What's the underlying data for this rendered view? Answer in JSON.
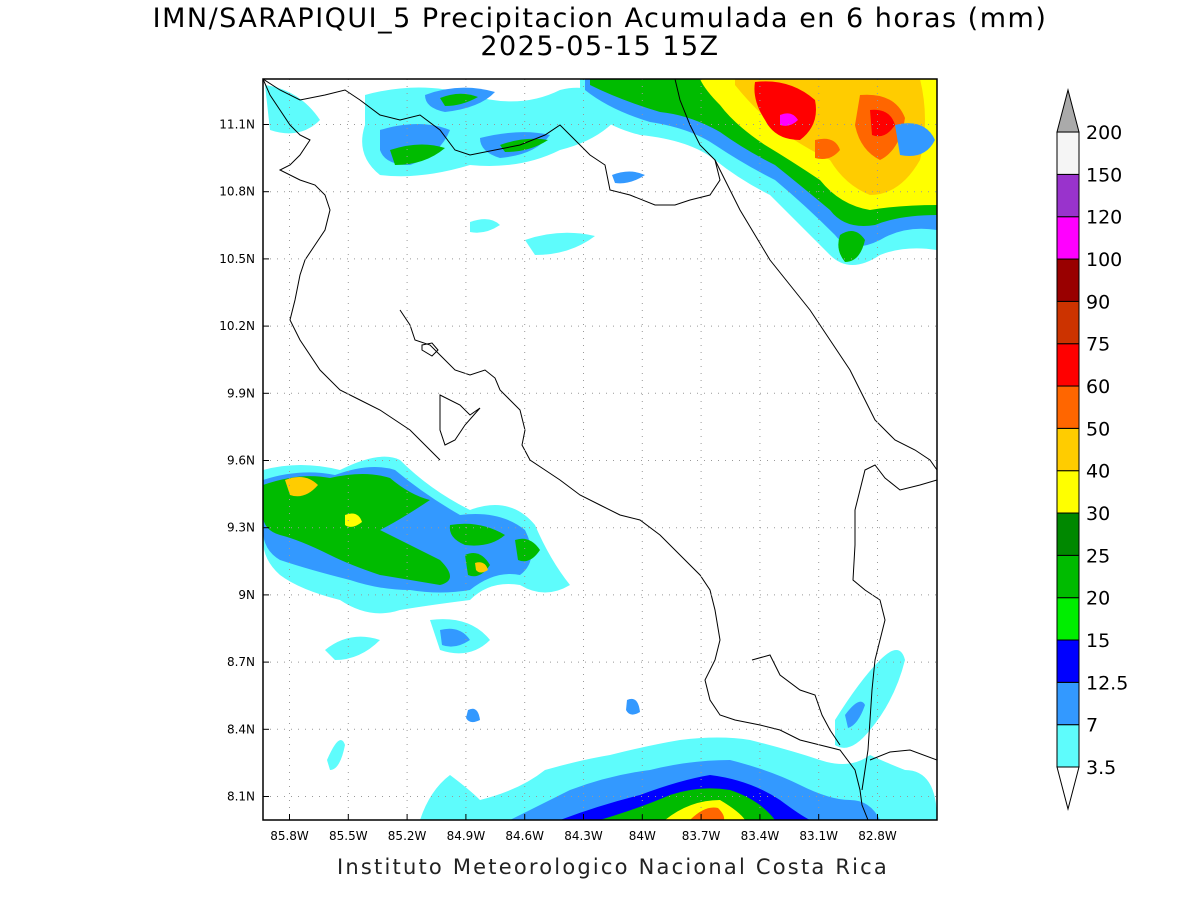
{
  "title": {
    "line1": "IMN/SARAPIQUI_5 Precipitacion Acumulada en 6 horas (mm)",
    "line2": "2025-05-15 15Z"
  },
  "footer": "Instituto Meteorologico Nacional Costa Rica",
  "map": {
    "lon_range": [
      -86.0,
      -83.0
    ],
    "lat_range": [
      8.0,
      11.3
    ],
    "x_ticks": [
      "85.8W",
      "85.5W",
      "85.2W",
      "84.9W",
      "84.6W",
      "84.3W",
      "84W",
      "83.7W",
      "83.4W",
      "83.1W",
      "82.8W"
    ],
    "y_ticks": [
      "11.1N",
      "10.8N",
      "10.5N",
      "10.2N",
      "9.9N",
      "9.6N",
      "9.3N",
      "9N",
      "8.7N",
      "8.4N",
      "8.1N"
    ],
    "grid": "dotted"
  },
  "colorbar": {
    "labels": [
      "3.5",
      "7",
      "12.5",
      "15",
      "20",
      "25",
      "30",
      "40",
      "50",
      "60",
      "75",
      "90",
      "100",
      "120",
      "150",
      "200"
    ],
    "colors": [
      "#5efcfc",
      "#3399ff",
      "#0000ff",
      "#00ee00",
      "#00bb00",
      "#008800",
      "#ffff00",
      "#ffcc00",
      "#ff6600",
      "#ff0000",
      "#cc3300",
      "#990000",
      "#ff00ff",
      "#9933cc",
      "#f5f5f5",
      "#aaaaaa"
    ]
  }
}
